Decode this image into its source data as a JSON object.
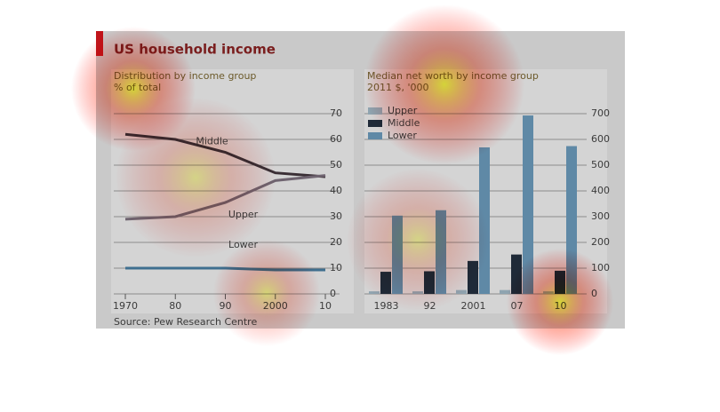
{
  "title": "US household income",
  "source": "Source: Pew Research Centre",
  "chart_data": [
    {
      "type": "line",
      "title": "Distribution by income group",
      "subtitle": "% of total",
      "x": [
        1970,
        1980,
        1990,
        2000,
        2010
      ],
      "xlim": [
        1970,
        2010
      ],
      "xticks": [
        {
          "value": 1970,
          "label": "1970"
        },
        {
          "value": 1980,
          "label": "80"
        },
        {
          "value": 1990,
          "label": "90"
        },
        {
          "value": 2000,
          "label": "2000"
        },
        {
          "value": 2010,
          "label": "10"
        }
      ],
      "series": [
        {
          "name": "Middle",
          "color": "#3a2f35",
          "values": [
            62,
            60,
            55,
            47,
            45.5
          ]
        },
        {
          "name": "Upper",
          "color": "#6f6470",
          "values": [
            29,
            30,
            35.5,
            44,
            46
          ]
        },
        {
          "name": "Lower",
          "color": "#3f6f8f",
          "values": [
            10,
            10,
            10,
            9.3,
            9.3
          ]
        }
      ],
      "ylim": [
        0,
        70
      ],
      "yticks": [
        0,
        10,
        20,
        30,
        40,
        50,
        60,
        70
      ],
      "grid": true
    },
    {
      "type": "bar",
      "title": "Median net worth by income group",
      "subtitle": "2011 $, '000",
      "categories": [
        "1983",
        "92",
        "2001",
        "07",
        "10"
      ],
      "series": [
        {
          "name": "Upper",
          "color": "#8fa4b0",
          "values": [
            10,
            10,
            15,
            15,
            10
          ]
        },
        {
          "name": "Middle",
          "color": "#1f2a38",
          "values": [
            86,
            88,
            128,
            153,
            90
          ]
        },
        {
          "name": "Lower",
          "color": "#5f89a6",
          "values": [
            304,
            325,
            569,
            693,
            574
          ]
        }
      ],
      "ylim": [
        0,
        700
      ],
      "yticks": [
        0,
        100,
        200,
        300,
        400,
        500,
        600,
        700
      ],
      "grid": true,
      "legend": "top-left"
    }
  ]
}
